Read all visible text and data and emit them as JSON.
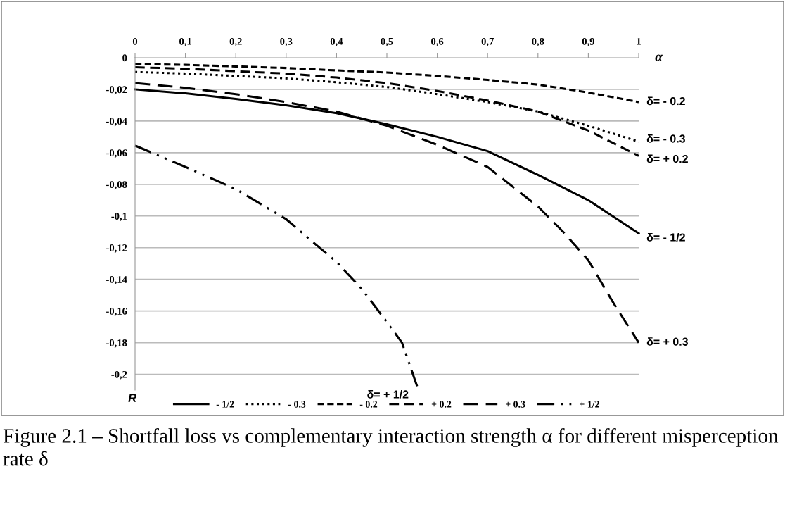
{
  "chart_data": {
    "type": "line",
    "xlabel": "α",
    "ylabel": "R",
    "x": [
      0,
      0.1,
      0.2,
      0.3,
      0.4,
      0.5,
      0.6,
      0.7,
      0.8,
      0.9,
      1
    ],
    "series": [
      {
        "name": "- 1/2",
        "color": "#000000",
        "line_style": "solid",
        "values": [
          -0.02,
          -0.0225,
          -0.026,
          -0.03,
          -0.035,
          -0.042,
          -0.05,
          -0.059,
          -0.074,
          -0.09,
          -0.111
        ]
      },
      {
        "name": "- 0.3",
        "color": "#000000",
        "line_style": "dotted",
        "values": [
          -0.009,
          -0.01,
          -0.0115,
          -0.013,
          -0.0155,
          -0.0185,
          -0.023,
          -0.028,
          -0.034,
          -0.043,
          -0.053
        ]
      },
      {
        "name": "- 0.2",
        "color": "#000000",
        "line_style": "short_dashed",
        "values": [
          -0.004,
          -0.0045,
          -0.0055,
          -0.0065,
          -0.008,
          -0.0093,
          -0.0115,
          -0.014,
          -0.017,
          -0.022,
          -0.028
        ]
      },
      {
        "name": "+ 0.2",
        "color": "#000000",
        "line_style": "dashed",
        "values": [
          -0.006,
          -0.007,
          -0.0085,
          -0.01,
          -0.0125,
          -0.016,
          -0.021,
          -0.027,
          -0.034,
          -0.046,
          -0.062
        ]
      },
      {
        "name": "+ 0.3",
        "color": "#000000",
        "line_style": "long_dashed",
        "x": [
          0,
          0.1,
          0.2,
          0.3,
          0.4,
          0.5,
          0.6,
          0.7,
          0.8,
          0.85,
          0.9,
          0.95,
          1
        ],
        "values": [
          -0.016,
          -0.019,
          -0.023,
          -0.028,
          -0.034,
          -0.043,
          -0.055,
          -0.069,
          -0.094,
          -0.11,
          -0.128,
          -0.155,
          -0.18
        ]
      },
      {
        "name": "+ 1/2",
        "color": "#000000",
        "line_style": "dash_dot_dot",
        "x": [
          0,
          0.1,
          0.2,
          0.3,
          0.35,
          0.4,
          0.45,
          0.5,
          0.53,
          0.56
        ],
        "values": [
          -0.0555,
          -0.069,
          -0.083,
          -0.102,
          -0.1156,
          -0.129,
          -0.146,
          -0.167,
          -0.18,
          -0.2075
        ]
      }
    ],
    "xlim": [
      0,
      1
    ],
    "ylim": [
      -0.21,
      0
    ],
    "xticks": [
      0,
      {
        "value": 0.1,
        "label": "0,1"
      },
      {
        "value": 0.2,
        "label": "0,2"
      },
      {
        "value": 0.3,
        "label": "0,3"
      },
      {
        "value": 0.4,
        "label": "0,4"
      },
      {
        "value": 0.5,
        "label": "0,5"
      },
      {
        "value": 0.6,
        "label": "0,6"
      },
      {
        "value": 0.7,
        "label": "0,7"
      },
      {
        "value": 0.8,
        "label": "0,8"
      },
      {
        "value": 0.9,
        "label": "0,9"
      },
      1
    ],
    "yticks": [
      0,
      {
        "value": -0.02,
        "label": "-0,02"
      },
      {
        "value": -0.04,
        "label": "-0,04"
      },
      {
        "value": -0.06,
        "label": "-0,06"
      },
      {
        "value": -0.08,
        "label": "-0,08"
      },
      {
        "value": -0.1,
        "label": "-0,1"
      },
      {
        "value": -0.12,
        "label": "-0,12"
      },
      {
        "value": -0.14,
        "label": "-0,14"
      },
      {
        "value": -0.16,
        "label": "-0,16"
      },
      {
        "value": -0.18,
        "label": "-0,18"
      },
      {
        "value": -0.2,
        "label": "-0,2"
      }
    ],
    "grid": "y",
    "legend": "bottom",
    "marker": "none",
    "annotations": [
      "δ= - 1/2",
      "δ= - 0.3",
      "δ= - 0.2",
      "δ= + 0.2",
      "δ= + 0.3",
      "δ= + 1/2",
      "Figure 2.1 – Shortfall loss vs complementary interaction strength α for different misperception rate δ"
    ]
  }
}
